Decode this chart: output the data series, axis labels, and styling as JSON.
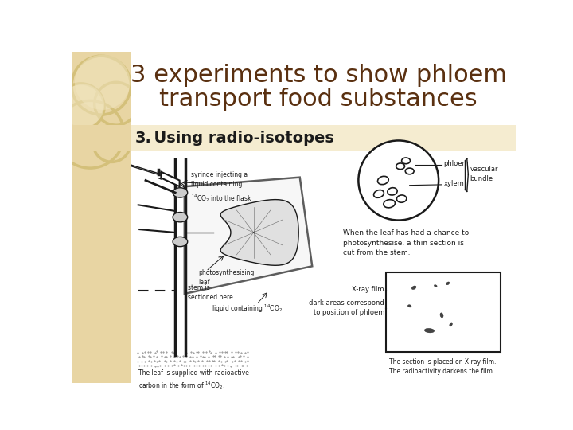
{
  "title_line1": "3 experiments to show phloem",
  "title_line2": "transport food substances",
  "subtitle_number": "3.",
  "subtitle_text": "  Using radio-isotopes",
  "title_color": "#5a3010",
  "subtitle_color": "#1a1a1a",
  "bg_color": "#ffffff",
  "left_panel_bg": "#e8d5a3",
  "left_panel_border": "#d4b870",
  "circle_color": "#d4c07a",
  "title_fontsize": 22,
  "subtitle_fontsize": 14,
  "diagram_color": "#1a1a1a",
  "small_text_size": 6.5
}
